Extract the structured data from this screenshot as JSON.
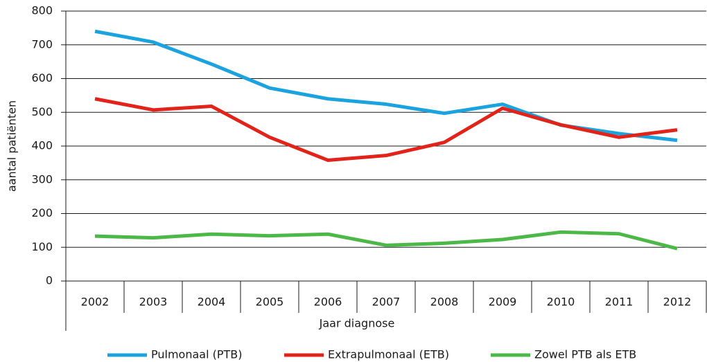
{
  "chart_data": {
    "type": "line",
    "categories": [
      "2002",
      "2003",
      "2004",
      "2005",
      "2006",
      "2007",
      "2008",
      "2009",
      "2010",
      "2011",
      "2012"
    ],
    "series": [
      {
        "name": "Pulmonaal (PTB)",
        "color": "#1aa3df",
        "values": [
          740,
          708,
          643,
          572,
          540,
          524,
          497,
          524,
          462,
          437,
          417
        ]
      },
      {
        "name": "Extrapulmonaal (ETB)",
        "color": "#e2231a",
        "values": [
          540,
          507,
          518,
          426,
          358,
          372,
          411,
          512,
          463,
          426,
          448
        ]
      },
      {
        "name": "Zowel PTB als ETB",
        "color": "#4cb848",
        "values": [
          133,
          128,
          139,
          134,
          139,
          106,
          112,
          123,
          145,
          140,
          96
        ]
      }
    ],
    "ylim": [
      0,
      800
    ],
    "yticks": [
      0,
      100,
      200,
      300,
      400,
      500,
      600,
      700,
      800
    ],
    "ylabel": "aantal patiënten",
    "xlabel": "Jaar diagnose",
    "grid": true,
    "legend": "bottom"
  }
}
